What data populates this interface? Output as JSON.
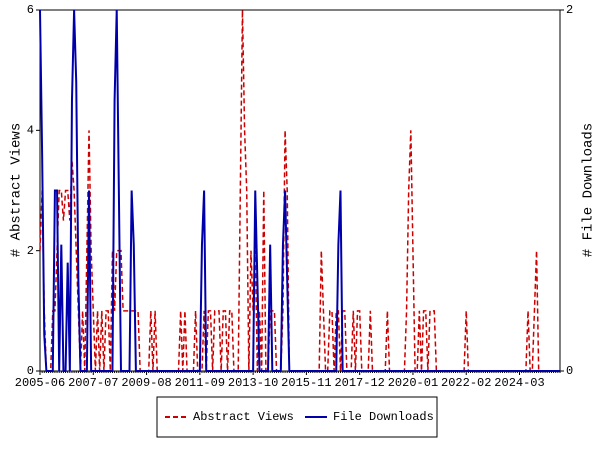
{
  "chart_data": {
    "type": "line",
    "y_label": "# Abstract Views",
    "y2_label": "# File Downloads",
    "categories": [
      "2005-06",
      null,
      null,
      null,
      null,
      null,
      null,
      null,
      null,
      null,
      null,
      null,
      null,
      null,
      null,
      null,
      null,
      null,
      null,
      null,
      null,
      null,
      null,
      null,
      null,
      "2007-07",
      null,
      null,
      null,
      null,
      null,
      null,
      null,
      null,
      null,
      null,
      null,
      null,
      null,
      null,
      null,
      null,
      null,
      null,
      null,
      null,
      null,
      null,
      null,
      null,
      "2009-08",
      null,
      null,
      null,
      null,
      null,
      null,
      null,
      null,
      null,
      null,
      null,
      null,
      null,
      null,
      null,
      null,
      null,
      null,
      null,
      null,
      null,
      null,
      null,
      null,
      "2011-09",
      null,
      null,
      null,
      null,
      null,
      null,
      null,
      null,
      null,
      null,
      null,
      null,
      null,
      null,
      null,
      null,
      null,
      null,
      null,
      null,
      null,
      null,
      null,
      null,
      "2013-10",
      null,
      null,
      null,
      null,
      null,
      null,
      null,
      null,
      null,
      null,
      null,
      null,
      null,
      null,
      null,
      null,
      null,
      null,
      null,
      null,
      null,
      null,
      null,
      null,
      "2015-11",
      null,
      null,
      null,
      null,
      null,
      null,
      null,
      null,
      null,
      null,
      null,
      null,
      null,
      null,
      null,
      null,
      null,
      null,
      null,
      null,
      null,
      null,
      null,
      null,
      "2017-12",
      null,
      null,
      null,
      null,
      null,
      null,
      null,
      null,
      null,
      null,
      null,
      null,
      null,
      null,
      null,
      null,
      null,
      null,
      null,
      null,
      null,
      null,
      null,
      null,
      "2020-01",
      null,
      null,
      null,
      null,
      null,
      null,
      null,
      null,
      null,
      null,
      null,
      null,
      null,
      null,
      null,
      null,
      null,
      null,
      null,
      null,
      null,
      null,
      null,
      null,
      "2022-02",
      null,
      null,
      null,
      null,
      null,
      null,
      null,
      null,
      null,
      null,
      null,
      null,
      null,
      null,
      null,
      null,
      null,
      null,
      null,
      null,
      null,
      null,
      null,
      null,
      "2024-03",
      null,
      null,
      null,
      null,
      null,
      null,
      null,
      null,
      null,
      null,
      null,
      null,
      null,
      null,
      null,
      null,
      null,
      null,
      null
    ],
    "series": [
      {
        "name": "Abstract Views",
        "color": "#cc0000",
        "dashed": true,
        "values": [
          2,
          3,
          1,
          0,
          0,
          0,
          1,
          1,
          2,
          3,
          3,
          2.5,
          3,
          3,
          2.5,
          3.5,
          3,
          2,
          1,
          0,
          1,
          0,
          2,
          4,
          2,
          1,
          0,
          1,
          0,
          1,
          0,
          1,
          1,
          0,
          2,
          1,
          2,
          2,
          2,
          1,
          1,
          1,
          1,
          1,
          1,
          1,
          1,
          0,
          0,
          0,
          0,
          0,
          1,
          0,
          1,
          0,
          0,
          0,
          0,
          0,
          0,
          0,
          0,
          0,
          0,
          0,
          1,
          0,
          1,
          0,
          0,
          0,
          0,
          1,
          0,
          0,
          0,
          1,
          0,
          1,
          1,
          0,
          1,
          1,
          1,
          0,
          1,
          1,
          0,
          1,
          1,
          0,
          0,
          0,
          3,
          6,
          4,
          3,
          0,
          2,
          1,
          2,
          0,
          1,
          0,
          3,
          0,
          0,
          1,
          1,
          1,
          0,
          0,
          0,
          1,
          4,
          3,
          0,
          0,
          0,
          0,
          0,
          0,
          0,
          0,
          0,
          0,
          0,
          0,
          0,
          0,
          0,
          2,
          1,
          0,
          0,
          1,
          1,
          0,
          1,
          1,
          0,
          1,
          1,
          0,
          0,
          0,
          1,
          0,
          1,
          1,
          0,
          0,
          0,
          0,
          1,
          0,
          0,
          0,
          0,
          0,
          0,
          0,
          1,
          0,
          0,
          0,
          0,
          0,
          0,
          0,
          0,
          1,
          3,
          4,
          2,
          0,
          0,
          1,
          0,
          1,
          1,
          0,
          1,
          1,
          1,
          0,
          0,
          0,
          0,
          0,
          0,
          0,
          0,
          0,
          0,
          0,
          0,
          0,
          0,
          1,
          0,
          0,
          0,
          0,
          0,
          0,
          0,
          0,
          0,
          0,
          0,
          0,
          0,
          0,
          0,
          0,
          0,
          0,
          0,
          0,
          0,
          0,
          0,
          0,
          0,
          0,
          0,
          0,
          1,
          0,
          0,
          1,
          2,
          0,
          0,
          0,
          0,
          0,
          0,
          0,
          0,
          0,
          0,
          0
        ]
      },
      {
        "name": "File Downloads",
        "color": "#0000aa",
        "axis": "y2",
        "values": [
          2,
          1.2,
          0.2,
          0,
          0,
          0,
          0,
          1,
          1,
          0,
          0.7,
          0,
          0,
          0.6,
          0,
          1.5,
          2,
          1.6,
          0.5,
          0,
          0,
          0,
          0,
          1,
          0,
          0,
          0,
          0,
          0,
          0,
          0,
          0,
          0,
          0,
          0,
          1.5,
          2,
          1,
          0,
          0,
          0,
          0,
          0,
          1,
          0.7,
          0,
          0,
          0,
          0,
          0,
          0,
          0,
          0,
          0,
          0,
          0,
          0,
          0,
          0,
          0,
          0,
          0,
          0,
          0,
          0,
          0,
          0,
          0,
          0,
          0,
          0,
          0,
          0,
          0,
          0,
          0,
          0.7,
          1,
          0,
          0,
          0,
          0,
          0,
          0,
          0,
          0,
          0,
          0,
          0,
          0,
          0,
          0,
          0,
          0,
          0,
          0,
          0,
          0,
          0,
          0,
          0,
          1,
          0.5,
          0,
          0,
          0,
          0,
          0,
          0.7,
          0,
          0,
          0,
          0,
          0,
          0.7,
          1,
          0.5,
          0,
          0,
          0,
          0,
          0,
          0,
          0,
          0,
          0,
          0,
          0,
          0,
          0,
          0,
          0,
          0,
          0,
          0,
          0,
          0,
          0,
          0,
          0,
          0.7,
          1,
          0,
          0,
          0,
          0,
          0,
          0,
          0,
          0,
          0,
          0,
          0,
          0,
          0,
          0,
          0,
          0,
          0,
          0,
          0,
          0,
          0,
          0,
          0,
          0,
          0,
          0,
          0,
          0,
          0,
          0,
          0,
          0,
          0,
          0,
          0,
          0,
          0,
          0,
          0,
          0,
          0,
          0,
          0,
          0,
          0,
          0,
          0,
          0,
          0,
          0,
          0,
          0,
          0,
          0,
          0,
          0,
          0,
          0,
          0,
          0,
          0,
          0,
          0,
          0,
          0,
          0,
          0,
          0,
          0,
          0,
          0,
          0,
          0,
          0,
          0,
          0,
          0,
          0,
          0,
          0,
          0,
          0,
          0,
          0,
          0,
          0,
          0,
          0,
          0,
          0,
          0,
          0,
          0,
          0,
          0,
          0,
          0,
          0,
          0,
          0,
          0,
          0,
          0
        ]
      }
    ],
    "ylim": [
      0,
      6
    ],
    "yticks": [
      0,
      2,
      4,
      6
    ],
    "y2lim": [
      0,
      2
    ],
    "y2ticks": [
      0,
      2
    ],
    "grid": false,
    "legend": "bottom"
  }
}
